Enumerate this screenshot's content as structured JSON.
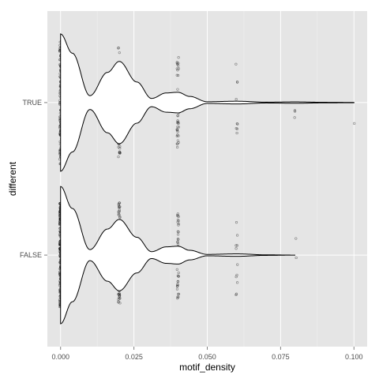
{
  "chart_data": {
    "type": "violin",
    "orientation": "horizontal",
    "xlabel": "motif_density",
    "ylabel": "different",
    "xlim": [
      -0.0045,
      0.1045
    ],
    "x_ticks": [
      0.0,
      0.025,
      0.05,
      0.075,
      0.1
    ],
    "x_tick_labels": [
      "0.000",
      "0.025",
      "0.050",
      "0.075",
      "0.100"
    ],
    "categories": [
      "FALSE",
      "TRUE"
    ],
    "grid": true,
    "background": "#e5e5e5",
    "grid_color": "#ffffff",
    "violins": [
      {
        "category": "TRUE",
        "max": 0.1,
        "profile": [
          [
            0.0,
            1.0
          ],
          [
            0.004,
            0.72
          ],
          [
            0.01,
            0.1
          ],
          [
            0.016,
            0.44
          ],
          [
            0.02,
            0.6
          ],
          [
            0.026,
            0.3
          ],
          [
            0.031,
            0.06
          ],
          [
            0.036,
            0.14
          ],
          [
            0.04,
            0.15
          ],
          [
            0.044,
            0.09
          ],
          [
            0.05,
            0.012
          ],
          [
            0.06,
            0.02
          ],
          [
            0.07,
            0.006
          ],
          [
            0.08,
            0.01
          ],
          [
            0.09,
            0.004
          ],
          [
            0.1,
            0.002
          ]
        ]
      },
      {
        "category": "FALSE",
        "max": 0.08,
        "profile": [
          [
            0.0,
            1.0
          ],
          [
            0.004,
            0.68
          ],
          [
            0.01,
            0.08
          ],
          [
            0.016,
            0.38
          ],
          [
            0.02,
            0.52
          ],
          [
            0.026,
            0.26
          ],
          [
            0.031,
            0.05
          ],
          [
            0.036,
            0.12
          ],
          [
            0.04,
            0.13
          ],
          [
            0.044,
            0.07
          ],
          [
            0.05,
            0.01
          ],
          [
            0.06,
            0.018
          ],
          [
            0.07,
            0.004
          ],
          [
            0.08,
            0.0
          ]
        ]
      }
    ],
    "points": [
      {
        "category": "TRUE",
        "groups": [
          {
            "x": 0.0,
            "count": 120,
            "spread": 0.45
          },
          {
            "x": 0.02,
            "count": 60,
            "spread": 0.4
          },
          {
            "x": 0.04,
            "count": 40,
            "spread": 0.33
          },
          {
            "x": 0.06,
            "count": 10,
            "spread": 0.3
          },
          {
            "x": 0.08,
            "count": 3,
            "spread": 0.15
          },
          {
            "x": 0.1,
            "count": 1,
            "spread": 0.22
          }
        ]
      },
      {
        "category": "FALSE",
        "groups": [
          {
            "x": 0.0,
            "count": 220,
            "spread": 0.38
          },
          {
            "x": 0.02,
            "count": 80,
            "spread": 0.38
          },
          {
            "x": 0.04,
            "count": 50,
            "spread": 0.32
          },
          {
            "x": 0.06,
            "count": 12,
            "spread": 0.3
          },
          {
            "x": 0.08,
            "count": 2,
            "spread": 0.14
          }
        ]
      }
    ]
  }
}
